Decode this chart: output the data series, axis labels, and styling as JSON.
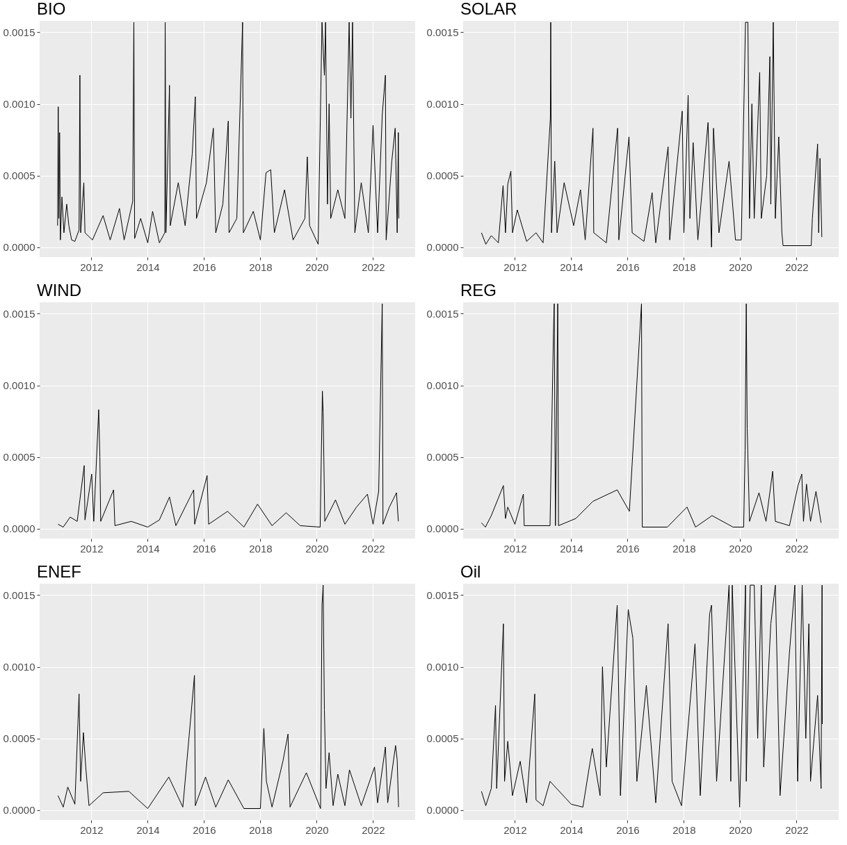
{
  "chart_data": [
    {
      "type": "line",
      "title": "BIO",
      "xlim": [
        "2010-03-01",
        "2023-07-01"
      ],
      "xticks": [
        "2012",
        "2014",
        "2016",
        "2018",
        "2020",
        "2022"
      ],
      "ylim": [
        -7e-05,
        0.00158
      ],
      "yticks": [
        {
          "value": 0,
          "label": "0.0000"
        },
        {
          "value": 0.0005,
          "label": "0.0005"
        },
        {
          "value": 0.001,
          "label": "0.0010"
        },
        {
          "value": 0.0015,
          "label": "0.0015"
        }
      ],
      "grid": true,
      "series": [
        {
          "color": "#000000",
          "x": [
            "2010-10-20",
            "2010-10-28",
            "2010-11-05",
            "2010-11-15",
            "2010-11-25",
            "2010-12-15",
            "2011-01-10",
            "2011-02-15",
            "2011-03-15",
            "2011-04-20",
            "2011-06-01",
            "2011-07-25",
            "2011-08-05",
            "2011-08-15",
            "2011-09-25",
            "2011-10-10",
            "2012-01-15",
            "2012-06-01",
            "2012-09-01",
            "2012-12-30",
            "2013-03-01",
            "2013-06-20",
            "2013-07-05",
            "2013-07-15",
            "2013-10-01",
            "2014-01-01",
            "2014-03-05",
            "2014-06-01",
            "2014-08-10",
            "2014-08-15",
            "2014-08-25",
            "2014-10-10",
            "2014-10-20",
            "2015-02-01",
            "2015-05-01",
            "2015-08-01",
            "2015-09-10",
            "2015-09-25",
            "2016-02-01",
            "2016-05-01",
            "2016-06-01",
            "2016-09-01",
            "2016-11-10",
            "2016-11-20",
            "2017-03-01",
            "2017-05-15",
            "2017-05-25",
            "2017-10-01",
            "2018-01-01",
            "2018-03-15",
            "2018-05-15",
            "2018-07-01",
            "2018-11-10",
            "2019-03-01",
            "2019-08-01",
            "2019-09-01",
            "2019-10-01",
            "2020-01-20",
            "2020-03-10",
            "2020-04-10",
            "2020-04-25",
            "2020-05-20",
            "2020-06-10",
            "2020-07-01",
            "2020-10-01",
            "2021-01-01",
            "2021-02-25",
            "2021-03-20",
            "2021-04-10",
            "2021-05-10",
            "2021-08-01",
            "2021-11-01",
            "2022-01-01",
            "2022-03-01",
            "2022-05-01",
            "2022-06-10",
            "2022-06-20",
            "2022-09-01",
            "2022-10-15",
            "2022-11-10",
            "2022-11-25",
            "2022-12-01"
          ],
          "values": [
            0.00015,
            0.00098,
            0.0002,
            0.0008,
            5e-05,
            0.00035,
            0.0001,
            0.0003,
            0.00015,
            5e-05,
            4e-05,
            0.00012,
            0.0012,
            0.0001,
            0.00045,
            0.0001,
            5e-05,
            0.00022,
            5e-05,
            0.00027,
            5e-05,
            0.00032,
            0.00157,
            6e-05,
            0.0002,
            3e-05,
            0.00025,
            3e-05,
            0.0001,
            0.00157,
            0.0001,
            0.00113,
            0.00015,
            0.00045,
            0.00015,
            0.00065,
            0.00105,
            0.0002,
            0.00045,
            0.00083,
            0.0001,
            0.0003,
            0.00088,
            0.0001,
            0.0002,
            0.00157,
            0.0001,
            0.00025,
            5e-05,
            0.00052,
            0.00054,
            0.0001,
            0.0004,
            5e-05,
            0.0002,
            0.00063,
            0.00015,
            2e-05,
            0.00157,
            0.0012,
            0.00157,
            0.0003,
            0.001,
            0.0002,
            0.0004,
            0.0002,
            0.00157,
            0.0009,
            0.00157,
            0.0001,
            0.00045,
            0.0001,
            0.00085,
            0.0001,
            0.00093,
            0.0012,
            5e-05,
            0.0006,
            0.00083,
            0.0001,
            0.0008,
            0.0002
          ]
        }
      ]
    },
    {
      "type": "line",
      "title": "SOLAR",
      "xlim": [
        "2010-03-01",
        "2023-07-01"
      ],
      "xticks": [
        "2012",
        "2014",
        "2016",
        "2018",
        "2020",
        "2022"
      ],
      "ylim": [
        -7e-05,
        0.00158
      ],
      "yticks": [
        {
          "value": 0,
          "label": "0.0000"
        },
        {
          "value": 0.0005,
          "label": "0.0005"
        },
        {
          "value": 0.001,
          "label": "0.0010"
        },
        {
          "value": 0.0015,
          "label": "0.0015"
        }
      ],
      "grid": true,
      "series": [
        {
          "color": "#000000",
          "x": [
            "2010-10-25",
            "2010-12-20",
            "2011-03-01",
            "2011-06-01",
            "2011-08-01",
            "2011-09-01",
            "2011-10-01",
            "2011-11-10",
            "2011-12-01",
            "2012-02-01",
            "2012-06-01",
            "2012-10-01",
            "2013-01-01",
            "2013-04-05",
            "2013-04-10",
            "2013-04-20",
            "2013-06-01",
            "2013-07-01",
            "2013-10-01",
            "2014-02-01",
            "2014-05-01",
            "2014-07-01",
            "2014-10-10",
            "2014-10-20",
            "2015-04-01",
            "2015-08-25",
            "2015-09-10",
            "2016-01-20",
            "2016-03-01",
            "2016-08-01",
            "2016-11-15",
            "2017-01-01",
            "2017-06-10",
            "2017-07-01",
            "2017-12-10",
            "2018-01-01",
            "2018-02-25",
            "2018-03-20",
            "2018-05-01",
            "2018-07-01",
            "2018-11-10",
            "2018-12-25",
            "2019-01-20",
            "2019-04-01",
            "2019-08-10",
            "2019-11-01",
            "2020-01-15",
            "2020-03-10",
            "2020-04-10",
            "2020-05-01",
            "2020-06-01",
            "2020-07-01",
            "2020-09-10",
            "2020-10-01",
            "2020-12-10",
            "2021-01-20",
            "2021-02-01",
            "2021-03-05",
            "2021-04-01",
            "2021-05-15",
            "2021-06-25",
            "2021-07-10",
            "2022-07-10",
            "2022-07-25",
            "2022-10-01",
            "2022-10-15",
            "2022-11-01",
            "2022-11-25"
          ],
          "values": [
            0.0001,
            2e-05,
            8e-05,
            3e-05,
            0.00043,
            0.0001,
            0.00044,
            0.00053,
            0.0001,
            0.00026,
            4e-05,
            0.0001,
            3e-05,
            0.0009,
            0.00157,
            0.0001,
            0.0006,
            0.0001,
            0.00045,
            0.00015,
            0.0004,
            5e-05,
            0.00083,
            0.0001,
            3e-05,
            0.00083,
            5e-05,
            0.00077,
            0.0001,
            4e-05,
            0.00038,
            3e-05,
            0.0007,
            5e-05,
            0.00095,
            0.0001,
            0.00106,
            0.0002,
            0.00073,
            5e-05,
            0.00087,
            0.0,
            0.00083,
            0.0001,
            0.0006,
            5e-05,
            5e-05,
            0.00157,
            0.00157,
            0.0002,
            0.001,
            0.0002,
            0.00122,
            0.0002,
            0.0005,
            0.00133,
            0.0003,
            0.00157,
            0.0002,
            0.00077,
            0.0001,
            1e-05,
            1e-05,
            0.0002,
            0.00072,
            0.0001,
            0.00062,
            7e-05
          ]
        }
      ]
    },
    {
      "type": "line",
      "title": "WIND",
      "xlim": [
        "2010-03-01",
        "2023-07-01"
      ],
      "xticks": [
        "2012",
        "2014",
        "2016",
        "2018",
        "2020",
        "2022"
      ],
      "ylim": [
        -7e-05,
        0.00158
      ],
      "yticks": [
        {
          "value": 0,
          "label": "0.0000"
        },
        {
          "value": 0.0005,
          "label": "0.0005"
        },
        {
          "value": 0.001,
          "label": "0.0010"
        },
        {
          "value": 0.0015,
          "label": "0.0015"
        }
      ],
      "grid": true,
      "series": [
        {
          "color": "#000000",
          "x": [
            "2010-10-25",
            "2011-01-01",
            "2011-04-01",
            "2011-07-01",
            "2011-09-30",
            "2011-10-10",
            "2012-01-05",
            "2012-02-01",
            "2012-04-05",
            "2012-04-20",
            "2012-05-01",
            "2012-10-15",
            "2012-11-01",
            "2013-06-01",
            "2014-01-01",
            "2014-06-01",
            "2014-10-10",
            "2015-01-01",
            "2015-08-20",
            "2015-09-01",
            "2016-02-10",
            "2016-03-01",
            "2016-11-01",
            "2017-06-01",
            "2017-11-25",
            "2018-06-01",
            "2018-12-01",
            "2019-06-01",
            "2020-02-15",
            "2020-03-15",
            "2020-03-25",
            "2020-04-15",
            "2020-09-01",
            "2021-01-01",
            "2021-06-01",
            "2021-10-20",
            "2022-01-01",
            "2022-03-15",
            "2022-04-30",
            "2022-05-10",
            "2022-08-01",
            "2022-11-01",
            "2022-11-25"
          ],
          "values": [
            3e-05,
            1e-05,
            8e-05,
            5e-05,
            0.00044,
            6e-05,
            0.00038,
            5e-05,
            0.00083,
            0.0005,
            5e-05,
            0.00027,
            2e-05,
            5e-05,
            1e-05,
            6e-05,
            0.00022,
            2e-05,
            0.00027,
            3e-05,
            0.00037,
            3e-05,
            0.00012,
            1e-05,
            0.00017,
            2e-05,
            0.00011,
            2e-05,
            1e-05,
            0.00096,
            0.00081,
            5e-05,
            0.0002,
            3e-05,
            0.00015,
            0.00024,
            3e-05,
            0.00026,
            0.00157,
            3e-05,
            0.00015,
            0.00025,
            5e-05
          ]
        }
      ]
    },
    {
      "type": "line",
      "title": "REG",
      "xlim": [
        "2010-03-01",
        "2023-07-01"
      ],
      "xticks": [
        "2012",
        "2014",
        "2016",
        "2018",
        "2020",
        "2022"
      ],
      "ylim": [
        -7e-05,
        0.00158
      ],
      "yticks": [
        {
          "value": 0,
          "label": "0.0000"
        },
        {
          "value": 0.0005,
          "label": "0.0005"
        },
        {
          "value": 0.001,
          "label": "0.0010"
        },
        {
          "value": 0.0015,
          "label": "0.0015"
        }
      ],
      "grid": true,
      "series": [
        {
          "color": "#000000",
          "x": [
            "2010-10-25",
            "2010-12-15",
            "2011-03-01",
            "2011-08-05",
            "2011-09-01",
            "2011-10-01",
            "2012-01-01",
            "2012-04-20",
            "2012-05-01",
            "2013-04-01",
            "2013-05-15",
            "2013-05-25",
            "2013-06-10",
            "2013-07-10",
            "2013-07-20",
            "2014-03-01",
            "2014-10-10",
            "2015-08-20",
            "2016-01-25",
            "2016-06-30",
            "2016-07-10",
            "2017-06-01",
            "2018-02-10",
            "2018-06-01",
            "2019-01-01",
            "2019-10-01",
            "2020-02-15",
            "2020-03-05",
            "2020-03-20",
            "2020-04-01",
            "2020-05-01",
            "2020-09-01",
            "2020-12-01",
            "2021-02-25",
            "2021-04-01",
            "2021-10-01",
            "2022-01-20",
            "2022-03-10",
            "2022-04-01",
            "2022-05-10",
            "2022-07-01",
            "2022-09-10",
            "2022-11-15"
          ],
          "values": [
            4e-05,
            1e-05,
            9e-05,
            0.0003,
            7e-05,
            0.00015,
            3e-05,
            0.00024,
            2e-05,
            2e-05,
            0.00136,
            0.00157,
            2e-05,
            0.00157,
            2e-05,
            7e-05,
            0.00019,
            0.00027,
            0.00012,
            0.00157,
            1e-05,
            1e-05,
            0.00015,
            1e-05,
            9e-05,
            1e-05,
            1e-05,
            0.00055,
            0.00157,
            0.0007,
            5e-05,
            0.00025,
            5e-05,
            0.0004,
            5e-05,
            2e-05,
            0.0003,
            0.00038,
            5e-05,
            0.00031,
            5e-05,
            0.00026,
            4e-05
          ]
        }
      ]
    },
    {
      "type": "line",
      "title": "ENEF",
      "xlim": [
        "2010-03-01",
        "2023-07-01"
      ],
      "xticks": [
        "2012",
        "2014",
        "2016",
        "2018",
        "2020",
        "2022"
      ],
      "ylim": [
        -7e-05,
        0.00158
      ],
      "yticks": [
        {
          "value": 0,
          "label": "0.0000"
        },
        {
          "value": 0.0005,
          "label": "0.0005"
        },
        {
          "value": 0.001,
          "label": "0.0010"
        },
        {
          "value": 0.0015,
          "label": "0.0015"
        }
      ],
      "grid": true,
      "series": [
        {
          "color": "#000000",
          "x": [
            "2010-10-25",
            "2011-01-01",
            "2011-03-01",
            "2011-06-01",
            "2011-07-25",
            "2011-08-15",
            "2011-09-20",
            "2011-10-20",
            "2011-12-01",
            "2012-06-01",
            "2013-05-01",
            "2014-01-01",
            "2014-10-01",
            "2015-04-01",
            "2015-08-30",
            "2015-09-10",
            "2016-01-20",
            "2016-06-01",
            "2016-11-10",
            "2017-06-01",
            "2018-01-01",
            "2018-02-15",
            "2018-03-20",
            "2018-06-01",
            "2018-10-20",
            "2018-12-25",
            "2019-01-20",
            "2019-08-20",
            "2020-02-20",
            "2020-03-10",
            "2020-03-25",
            "2020-04-10",
            "2020-05-01",
            "2020-06-10",
            "2020-08-01",
            "2020-10-01",
            "2021-01-01",
            "2021-03-01",
            "2021-08-01",
            "2022-01-20",
            "2022-03-01",
            "2022-06-10",
            "2022-07-10",
            "2022-10-20",
            "2022-11-10",
            "2022-11-28"
          ],
          "values": [
            0.0001,
            2e-05,
            0.00016,
            4e-05,
            0.00081,
            0.0002,
            0.00054,
            0.0003,
            3e-05,
            0.00012,
            0.00013,
            1e-05,
            0.00023,
            2e-05,
            0.00094,
            3e-05,
            0.00023,
            2e-05,
            0.00021,
            1e-05,
            1e-05,
            0.00057,
            0.0002,
            2e-05,
            0.00034,
            0.00053,
            2e-05,
            0.00026,
            1e-05,
            0.00143,
            0.00157,
            0.0007,
            0.00015,
            0.0004,
            3e-05,
            0.00025,
            3e-05,
            0.00028,
            3e-05,
            0.0003,
            5e-05,
            0.00044,
            5e-05,
            0.00045,
            0.00035,
            2e-05
          ]
        }
      ]
    },
    {
      "type": "line",
      "title": "Oil",
      "xlim": [
        "2010-03-01",
        "2023-07-01"
      ],
      "xticks": [
        "2012",
        "2014",
        "2016",
        "2018",
        "2020",
        "2022"
      ],
      "ylim": [
        -7e-05,
        0.00158
      ],
      "yticks": [
        {
          "value": 0,
          "label": "0.0000"
        },
        {
          "value": 0.0005,
          "label": "0.0005"
        },
        {
          "value": 0.001,
          "label": "0.0010"
        },
        {
          "value": 0.0015,
          "label": "0.0015"
        }
      ],
      "grid": true,
      "series": [
        {
          "color": "#000000",
          "x": [
            "2010-10-25",
            "2010-12-20",
            "2011-03-01",
            "2011-04-25",
            "2011-05-10",
            "2011-08-05",
            "2011-08-20",
            "2011-10-01",
            "2011-12-01",
            "2012-03-10",
            "2012-06-01",
            "2012-09-15",
            "2012-10-01",
            "2013-01-01",
            "2013-04-01",
            "2014-01-01",
            "2014-06-01",
            "2014-10-01",
            "2015-01-10",
            "2015-02-10",
            "2015-04-01",
            "2015-08-20",
            "2015-10-01",
            "2016-01-10",
            "2016-03-10",
            "2016-05-01",
            "2016-09-01",
            "2017-01-01",
            "2017-06-10",
            "2017-08-01",
            "2017-12-01",
            "2018-05-25",
            "2018-08-01",
            "2018-12-01",
            "2018-12-25",
            "2019-03-01",
            "2019-08-10",
            "2019-09-01",
            "2019-09-20",
            "2019-12-25",
            "2020-03-10",
            "2020-03-20",
            "2020-05-10",
            "2020-07-01",
            "2020-08-15",
            "2020-10-01",
            "2020-11-01",
            "2021-02-01",
            "2021-04-01",
            "2021-06-01",
            "2021-10-01",
            "2021-12-10",
            "2022-01-15",
            "2022-03-15",
            "2022-05-01",
            "2022-06-10",
            "2022-07-01",
            "2022-10-01",
            "2022-11-15",
            "2022-11-28",
            "2022-12-01"
          ],
          "values": [
            0.00013,
            3e-05,
            0.00015,
            0.00073,
            0.00015,
            0.0013,
            0.0002,
            0.00048,
            0.0001,
            0.00034,
            5e-05,
            0.00081,
            7e-05,
            3e-05,
            0.0002,
            4e-05,
            2e-05,
            0.00043,
            0.0001,
            0.001,
            0.0003,
            0.00143,
            0.0001,
            0.0014,
            0.0012,
            0.0002,
            0.00087,
            5e-05,
            0.0013,
            0.0002,
            3e-05,
            0.00116,
            0.0001,
            0.00137,
            0.00143,
            0.0002,
            0.00157,
            0.0002,
            0.00157,
            2e-05,
            0.00157,
            0.0002,
            0.00157,
            0.00157,
            0.0005,
            0.00157,
            0.0003,
            0.0013,
            0.00157,
            0.0001,
            0.0011,
            0.00157,
            0.0002,
            0.00157,
            0.0005,
            0.0013,
            0.0002,
            0.0008,
            0.00015,
            0.00157,
            0.0006
          ]
        }
      ]
    }
  ]
}
